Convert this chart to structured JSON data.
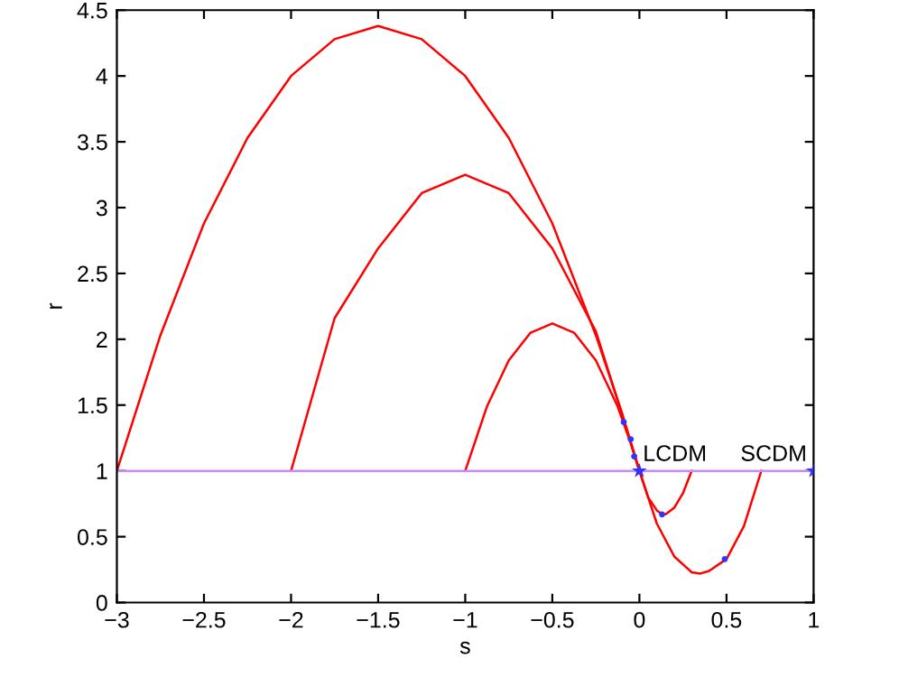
{
  "chart_data": {
    "type": "line",
    "xlabel": "s",
    "ylabel": "r",
    "xlim": [
      -3,
      1
    ],
    "ylim": [
      0,
      4.5
    ],
    "xticks": [
      {
        "value": -3,
        "label": "−3"
      },
      {
        "value": -2.5,
        "label": "−2.5"
      },
      {
        "value": -2,
        "label": "−2"
      },
      {
        "value": -1.5,
        "label": "−1.5"
      },
      {
        "value": -1,
        "label": "−1"
      },
      {
        "value": -0.5,
        "label": "−0.5"
      },
      0,
      0.5,
      1
    ],
    "yticks": [
      0,
      0.5,
      1,
      1.5,
      2,
      2.5,
      3,
      3.5,
      4,
      4.5
    ],
    "grid": false,
    "series": [
      {
        "color": "#ff0000",
        "marker": "none",
        "x": [
          -3,
          -2.75,
          -2.5,
          -2.25,
          -2,
          -1.75,
          -1.5,
          -1.25,
          -1,
          -0.75,
          -0.5,
          -0.25,
          -0.1,
          0,
          0.1,
          0.2,
          0.3,
          0.35,
          0.4,
          0.5,
          0.6,
          0.7
        ],
        "values": [
          1,
          2.03,
          2.88,
          3.53,
          4.0,
          4.28,
          4.38,
          4.28,
          4.0,
          3.53,
          2.88,
          2.03,
          1.44,
          1.0,
          0.6,
          0.35,
          0.23,
          0.22,
          0.24,
          0.33,
          0.58,
          1.0
        ]
      },
      {
        "color": "#ff0000",
        "marker": "none",
        "x": [
          -2,
          -1.75,
          -1.5,
          -1.25,
          -1,
          -0.75,
          -0.5,
          -0.25,
          -0.1,
          0,
          0.05,
          0.1,
          0.13,
          0.15,
          0.2,
          0.25,
          0.3
        ],
        "values": [
          1,
          2.16,
          2.69,
          3.11,
          3.25,
          3.11,
          2.69,
          2.06,
          1.43,
          1.0,
          0.8,
          0.7,
          0.67,
          0.67,
          0.72,
          0.83,
          1.0
        ]
      },
      {
        "color": "#ff0000",
        "marker": "none",
        "x": [
          -1,
          -0.875,
          -0.75,
          -0.625,
          -0.5,
          -0.375,
          -0.25,
          -0.125,
          -0.05,
          0
        ],
        "values": [
          1,
          1.49,
          1.84,
          2.05,
          2.12,
          2.05,
          1.84,
          1.49,
          1.21,
          1.0
        ]
      },
      {
        "color": "#cc88ff",
        "marker": "none",
        "x": [
          -3,
          1
        ],
        "values": [
          1,
          1
        ]
      },
      {
        "type": "scatter",
        "color": "#3333ff",
        "marker": "circle",
        "x": [
          -0.09,
          -0.05,
          -0.03,
          0.13,
          0.49
        ],
        "values": [
          1.37,
          1.24,
          1.11,
          0.67,
          0.33
        ]
      },
      {
        "type": "scatter",
        "color": "#3333ff",
        "marker": "star",
        "x": [
          0,
          1
        ],
        "values": [
          1,
          1
        ]
      }
    ],
    "annotations": [
      {
        "text": "LCDM",
        "x": 0.02,
        "y": 1.04
      },
      {
        "text": "SCDM",
        "x": 0.58,
        "y": 1.04
      }
    ]
  }
}
